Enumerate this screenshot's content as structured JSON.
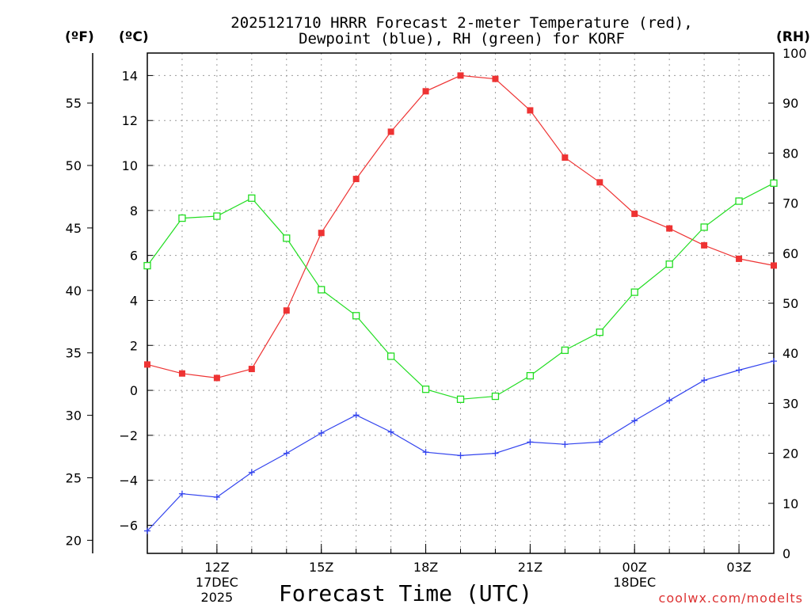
{
  "chart_data": {
    "type": "line",
    "title_line1": "2025121710 HRRR Forecast 2-meter Temperature (red),",
    "title_line2": "Dewpoint (blue), RH (green) for KORF",
    "xlabel": "Forecast Time (UTC)",
    "credit": "coolwx.com/modelts",
    "units": {
      "left_f": "(ºF)",
      "left_c": "(ºC)",
      "right": "(RH)"
    },
    "x_hours": [
      10,
      11,
      12,
      13,
      14,
      15,
      16,
      17,
      18,
      19,
      20,
      21,
      22,
      23,
      24,
      25,
      26,
      27,
      28
    ],
    "xlim": [
      10,
      28
    ],
    "x_ticks": [
      {
        "hour": 12,
        "label": "12Z",
        "sub1": "17DEC",
        "sub2": "2025"
      },
      {
        "hour": 15,
        "label": "15Z",
        "sub1": "",
        "sub2": ""
      },
      {
        "hour": 18,
        "label": "18Z",
        "sub1": "",
        "sub2": ""
      },
      {
        "hour": 21,
        "label": "21Z",
        "sub1": "",
        "sub2": ""
      },
      {
        "hour": 24,
        "label": "00Z",
        "sub1": "18DEC",
        "sub2": ""
      },
      {
        "hour": 27,
        "label": "03Z",
        "sub1": "",
        "sub2": ""
      }
    ],
    "ylim_c": [
      -7.25,
      15
    ],
    "y_ticks_c": [
      "14",
      "12",
      "10",
      "8",
      "6",
      "4",
      "2",
      "0",
      "−2",
      "−4",
      "−6"
    ],
    "y_ticks_c_values": [
      14,
      12,
      10,
      8,
      6,
      4,
      2,
      0,
      -2,
      -4,
      -6
    ],
    "y_ticks_f": [
      "55",
      "50",
      "45",
      "40",
      "35",
      "30",
      "25",
      "20"
    ],
    "y_ticks_f_values": [
      55,
      50,
      45,
      40,
      35,
      30,
      25,
      20
    ],
    "rh_ylim": [
      0,
      100
    ],
    "y_ticks_rh": [
      "100",
      "90",
      "80",
      "70",
      "60",
      "50",
      "40",
      "30",
      "20",
      "10",
      "0"
    ],
    "y_ticks_rh_values": [
      100,
      90,
      80,
      70,
      60,
      50,
      40,
      30,
      20,
      10,
      0
    ],
    "series": [
      {
        "name": "Temperature",
        "color": "#ee3333",
        "marker": "filled-square",
        "axis": "c",
        "values": [
          1.15,
          0.75,
          0.55,
          0.95,
          3.55,
          7.0,
          9.4,
          11.5,
          13.3,
          14.0,
          13.85,
          12.45,
          10.35,
          9.25,
          7.85,
          7.2,
          6.45,
          5.85,
          5.55
        ]
      },
      {
        "name": "Dewpoint",
        "color": "#3344ee",
        "marker": "plus",
        "axis": "c",
        "values": [
          -6.25,
          -4.6,
          -4.75,
          -3.65,
          -2.8,
          -1.9,
          -1.1,
          -1.85,
          -2.75,
          -2.9,
          -2.8,
          -2.3,
          -2.4,
          -2.3,
          -1.35,
          -0.45,
          0.45,
          0.9,
          1.3
        ]
      },
      {
        "name": "RH",
        "color": "#22dd22",
        "marker": "open-square",
        "axis": "rh",
        "values": [
          57.5,
          67.0,
          67.4,
          71.0,
          63.0,
          52.7,
          47.5,
          39.4,
          32.8,
          30.8,
          31.4,
          35.5,
          40.6,
          44.2,
          52.2,
          57.8,
          65.2,
          70.4,
          74.0
        ]
      }
    ]
  }
}
